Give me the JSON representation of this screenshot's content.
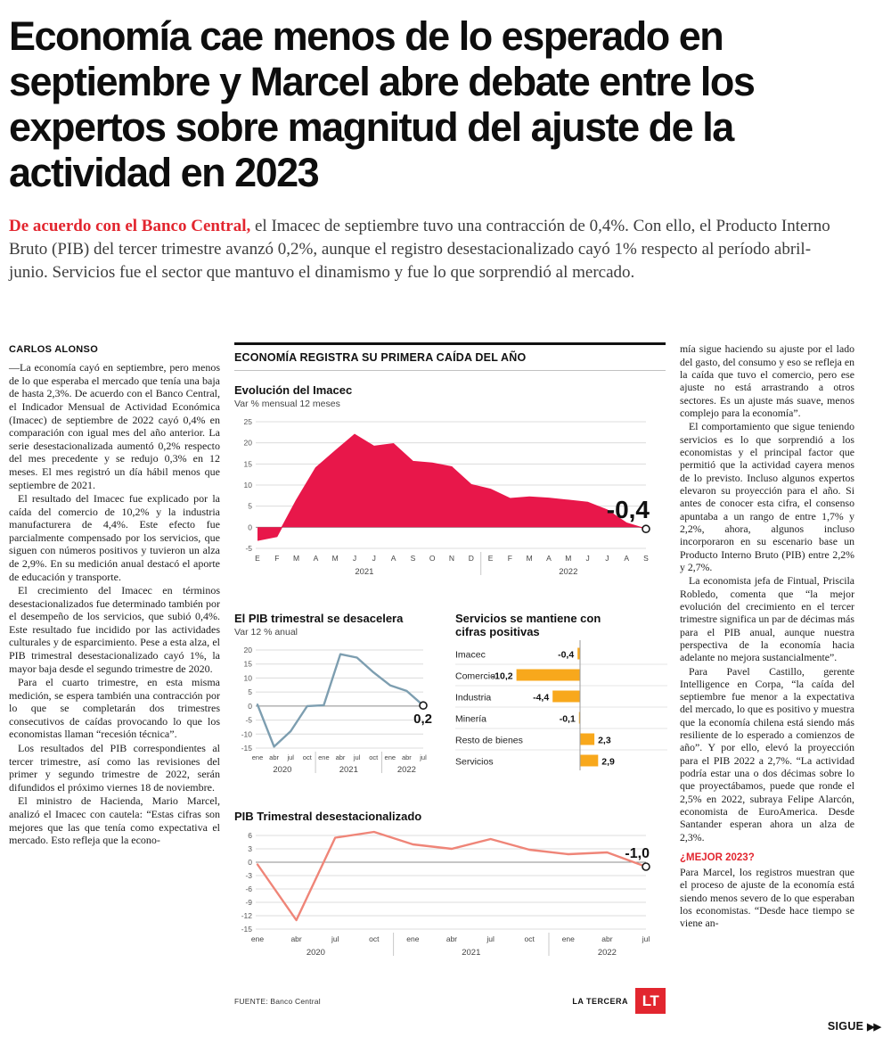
{
  "headline": "Economía cae menos de lo esperado en\nseptiembre y Marcel abre debate entre los\nexpertos sobre magnitud del ajuste de la\nactividad en 2023",
  "lede": {
    "lead_in": "De acuerdo con el Banco Central,",
    "text": " el Imacec de septiembre tuvo una contracción de 0,4%. Con ello, el Producto Interno Bruto (PIB) del tercer trimestre avanzó 0,2%, aunque el registro desestacionalizado cayó 1% respecto al período abril-junio. Servicios fue el sector que mantuvo el dinamismo y fue lo que sorprendió al mercado."
  },
  "byline": "CARLOS ALONSO",
  "left_column": {
    "paragraphs": [
      "—La economía cayó en septiembre, pero menos de lo que esperaba el mercado que tenía una baja de hasta 2,3%. De acuerdo con el Banco Central, el Indicador Mensual de Actividad Económica (Imacec) de septiembre de 2022 cayó 0,4% en comparación con igual mes del año anterior. La serie desestacionalizada aumentó 0,2% respecto del mes precedente y se redujo 0,3% en 12 meses. El mes registró un día hábil menos que septiembre de 2021.",
      "El resultado del Imacec fue explicado por la caída del comercio de 10,2% y la industria manufacturera de 4,4%. Este efecto fue parcialmente compensado por los servicios, que siguen con números positivos y tuvieron un alza de 2,9%. En su medición anual destacó el aporte de educación y transporte.",
      "El crecimiento del Imacec en términos desestacionalizados fue determinado también por el desempeño de los servicios, que subió 0,4%. Este resultado fue incidido por las actividades culturales y de esparcimiento. Pese a esta alza, el PIB trimestral desestacionalizado cayó 1%, la mayor baja desde el segundo trimestre de 2020.",
      "Para el cuarto trimestre, en esta misma medición, se espera también una contracción por lo que se completarán dos trimestres consecutivos de caídas provocando lo que los economistas llaman “recesión técnica”.",
      "Los resultados del PIB correspondientes al tercer trimestre, así como las revisiones del primer y segundo trimestre de 2022, serán difundidos el próximo viernes 18 de noviembre.",
      "El ministro de Hacienda, Mario Marcel, analizó el Imacec con cautela: “Estas cifras son mejores que las que tenía como expectativa el mercado. Esto refleja que la econo-"
    ]
  },
  "right_column": {
    "paragraphs_before": [
      "mía sigue haciendo su ajuste por el lado del gasto, del consumo y eso se refleja en la caída que tuvo el comercio, pero ese ajuste no está arrastrando a otros sectores. Es un ajuste más suave, menos complejo para la economía”.",
      "El comportamiento que sigue teniendo servicios es lo que sorprendió a los economistas y el principal factor que permitió que la actividad cayera menos de lo previsto. Incluso algunos expertos elevaron su proyección para el año. Si antes de conocer esta cifra, el consenso apuntaba a un rango de entre 1,7% y 2,2%, ahora, algunos incluso incorporaron en su escenario base un Producto Interno Bruto (PIB) entre 2,2% y 2,7%.",
      "La economista jefa de Fintual, Priscila Robledo, comenta que “la mejor evolución del crecimiento en el tercer trimestre significa un par de décimas más para el PIB anual, aunque nuestra perspectiva de la economía hacia adelante no mejora sustancialmente”.",
      "Para Pavel Castillo, gerente Intelligence en Corpa, “la caída del septiembre fue menor a la expectativa del mercado, lo que es positivo y muestra que la economía chilena está siendo más resiliente de lo esperado a comienzos de año”. Y por ello, elevó la proyección para el PIB 2022 a 2,7%. “La actividad podría estar una o dos décimas sobre lo que proyectábamos, puede que ronde el 2,5% en 2022, subraya Felipe Alarcón, economista de EuroAmerica. Desde Santander esperan ahora un alza de 2,3%."
    ],
    "subhead": "¿MEJOR 2023?",
    "paragraphs_after": [
      "Para Marcel, los registros muestran que el proceso de ajuste de la economía está siendo menos severo de lo que esperaban los economistas. “Desde hace tiempo se viene an-"
    ]
  },
  "charts_section": {
    "header": "ECONOMÍA REGISTRA SU PRIMERA CAÍDA DEL AÑO",
    "source": "FUENTE: Banco Central",
    "credit": "LA TERCERA",
    "logo": "LT"
  },
  "continuation": "SIGUE",
  "colors": {
    "brand_red": "#e2262f",
    "chart_crimson": "#e8174a",
    "bar_orange": "#f8a81c",
    "line_blue": "#7d9eb0",
    "line_salmon": "#ef8578"
  },
  "chart_data": [
    {
      "type": "area",
      "title": "Evolución del Imacec",
      "subtitle": "Var % mensual 12 meses",
      "x_labels": [
        "E",
        "F",
        "M",
        "A",
        "M",
        "J",
        "J",
        "A",
        "S",
        "O",
        "N",
        "D",
        "E",
        "F",
        "M",
        "A",
        "M",
        "J",
        "J",
        "A",
        "S"
      ],
      "year_labels": [
        {
          "label": "2021",
          "span": [
            0,
            11
          ]
        },
        {
          "label": "2022",
          "span": [
            12,
            20
          ]
        }
      ],
      "values": [
        -3.1,
        -2.2,
        6.4,
        14.1,
        18.1,
        22.0,
        19.2,
        19.8,
        15.6,
        15.2,
        14.3,
        10.1,
        9.0,
        6.8,
        7.2,
        6.9,
        6.4,
        5.9,
        4.1,
        1.0,
        -0.4
      ],
      "end_label": "-0,4",
      "y_ticks": [
        25,
        20,
        15,
        10,
        5,
        0,
        -5
      ],
      "ylim": [
        -5,
        25
      ],
      "color": "#e8174a"
    },
    {
      "type": "line",
      "title": "El PIB trimestral se desacelera",
      "subtitle": "Var 12 % anual",
      "x_labels": [
        "ene",
        "abr",
        "jul",
        "oct",
        "ene",
        "abr",
        "jul",
        "oct",
        "ene",
        "abr",
        "jul"
      ],
      "year_labels": [
        {
          "label": "2020",
          "span": [
            0,
            3
          ]
        },
        {
          "label": "2021",
          "span": [
            4,
            7
          ]
        },
        {
          "label": "2022",
          "span": [
            8,
            10
          ]
        }
      ],
      "values": [
        0.5,
        -14.5,
        -9.0,
        0.0,
        0.3,
        18.5,
        17.3,
        12.0,
        7.4,
        5.4,
        0.2
      ],
      "end_label": "0,2",
      "y_ticks": [
        20,
        15,
        10,
        5,
        0,
        -5,
        -10,
        -15
      ],
      "ylim": [
        -15,
        20
      ],
      "color": "#7d9eb0"
    },
    {
      "type": "bar",
      "title": "Servicios se mantiene con cifras positivas",
      "categories": [
        "Imacec",
        "Comercio",
        "Industria",
        "Minería",
        "Resto de bienes",
        "Servicios"
      ],
      "values": [
        -0.4,
        -10.2,
        -4.4,
        -0.1,
        2.3,
        2.9
      ],
      "value_labels": [
        "-0,4",
        "-10,2",
        "-4,4",
        "-0,1",
        "2,3",
        "2,9"
      ],
      "color": "#f8a81c"
    },
    {
      "type": "line",
      "title": "PIB Trimestral desestacionalizado",
      "x_labels": [
        "ene",
        "abr",
        "jul",
        "oct",
        "ene",
        "abr",
        "jul",
        "oct",
        "ene",
        "abr",
        "jul"
      ],
      "year_labels": [
        {
          "label": "2020",
          "span": [
            0,
            3
          ]
        },
        {
          "label": "2021",
          "span": [
            4,
            7
          ]
        },
        {
          "label": "2022",
          "span": [
            8,
            10
          ]
        }
      ],
      "values": [
        -0.5,
        -13.0,
        5.5,
        6.8,
        4.0,
        3.0,
        5.2,
        2.8,
        1.8,
        2.2,
        -1.0
      ],
      "end_label": "-1,0",
      "y_ticks": [
        6,
        3,
        0,
        -3,
        -6,
        -9,
        -12,
        -15
      ],
      "ylim": [
        -15,
        6
      ],
      "color": "#ef8578"
    }
  ]
}
